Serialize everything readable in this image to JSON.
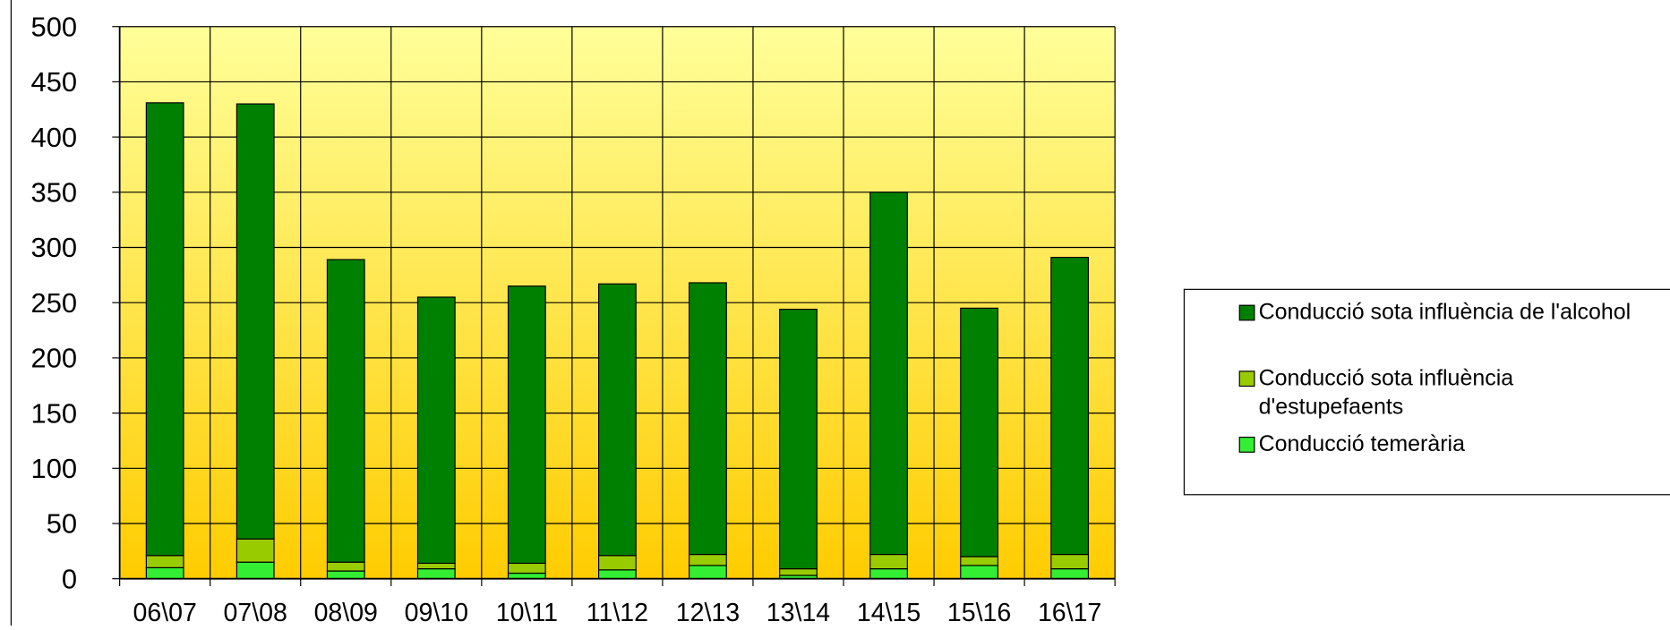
{
  "chart_data": {
    "type": "bar",
    "stacked": true,
    "categories": [
      "06\\07",
      "07\\08",
      "08\\09",
      "09\\10",
      "10\\11",
      "11\\12",
      "12\\13",
      "13\\14",
      "14\\15",
      "15\\16",
      "16\\17"
    ],
    "series": [
      {
        "name": "Conducció temerària",
        "color": "#33ee33",
        "values": [
          10,
          15,
          7,
          9,
          5,
          8,
          12,
          3,
          9,
          12,
          9
        ]
      },
      {
        "name": "Conducció sota influència d'estupefaents",
        "color": "#99cc00",
        "values": [
          11,
          21,
          8,
          5,
          9,
          13,
          10,
          6,
          13,
          8,
          13
        ]
      },
      {
        "name": "Conducció sota influència de l'alcohol",
        "color": "#008000",
        "values": [
          410,
          394,
          274,
          241,
          251,
          246,
          246,
          235,
          328,
          225,
          269
        ]
      }
    ],
    "ylim": [
      0,
      500
    ],
    "yticks": [
      0,
      50,
      100,
      150,
      200,
      250,
      300,
      350,
      400,
      450,
      500
    ],
    "grid": true,
    "legend": "right"
  }
}
